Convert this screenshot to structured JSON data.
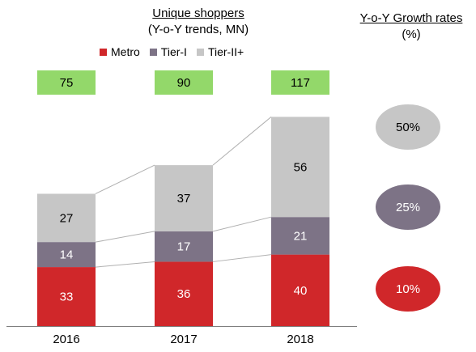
{
  "title": "Unique shoppers",
  "subtitle": "(Y-o-Y trends, MN)",
  "growth_title": "Y-o-Y Growth rates",
  "growth_unit": "(%)",
  "colors": {
    "Metro": "#d0272a",
    "Tier-I": "#7d7386",
    "Tier-II+": "#c6c6c6",
    "total_box": "#93d86a",
    "connector": "#b0b0b0",
    "axis": "#7f7f7f"
  },
  "chart_data": {
    "type": "bar",
    "stacked": true,
    "categories": [
      "2016",
      "2017",
      "2018"
    ],
    "series": [
      {
        "name": "Metro",
        "values": [
          33,
          36,
          40
        ]
      },
      {
        "name": "Tier-I",
        "values": [
          14,
          17,
          21
        ]
      },
      {
        "name": "Tier-II+",
        "values": [
          27,
          37,
          56
        ]
      }
    ],
    "totals": [
      "75",
      "90",
      "117"
    ],
    "legend": [
      "Metro",
      "Tier-I",
      "Tier-II+"
    ],
    "legend_position": "top",
    "grid": false
  },
  "growth_rates": [
    {
      "series": "Tier-II+",
      "label": "50%"
    },
    {
      "series": "Tier-I",
      "label": "25%"
    },
    {
      "series": "Metro",
      "label": "10%"
    }
  ]
}
